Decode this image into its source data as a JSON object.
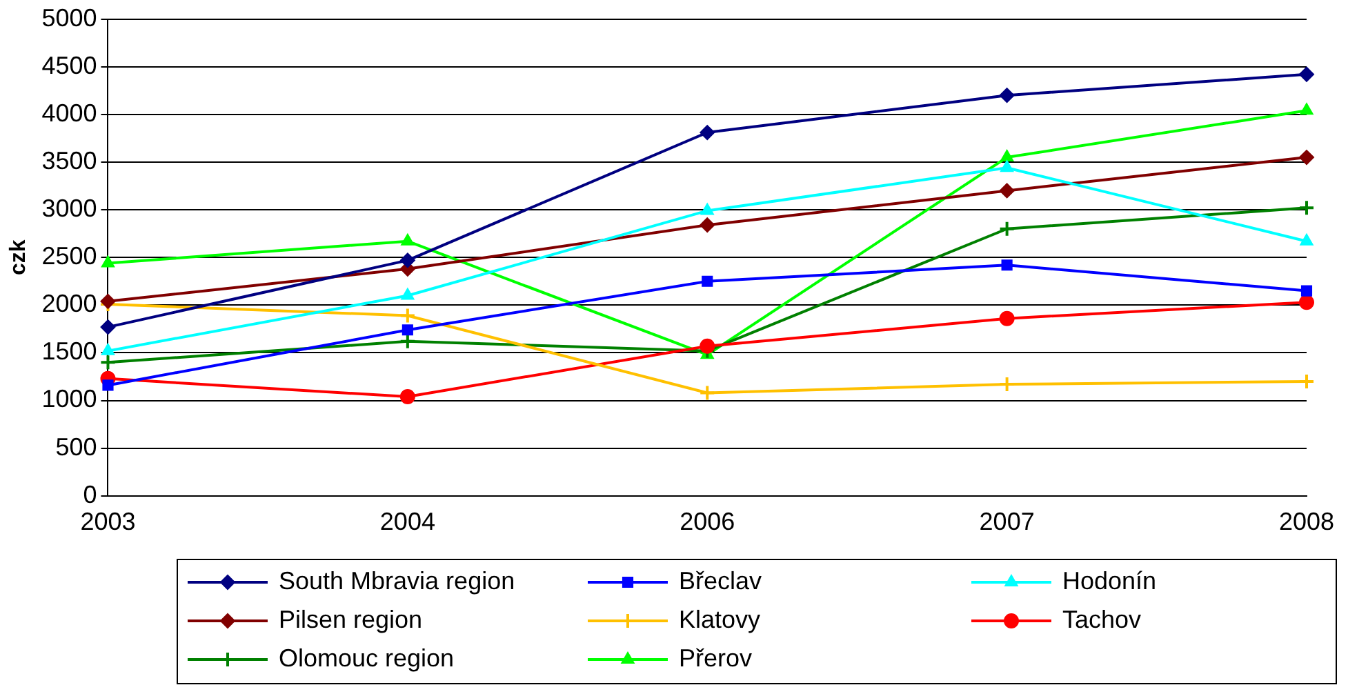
{
  "chart_data": {
    "type": "line",
    "ylabel": "czk",
    "categories": [
      "2003",
      "2004",
      "2006",
      "2007",
      "2008"
    ],
    "ylim": [
      0,
      5000
    ],
    "yticks": [
      0,
      500,
      1000,
      1500,
      2000,
      2500,
      3000,
      3500,
      4000,
      4500,
      5000
    ],
    "grid": "y",
    "legend": "bottom",
    "line_style": "solid",
    "series": [
      {
        "name": "South Mbravia region",
        "color": "#000080",
        "marker": "diamond",
        "values": [
          1770,
          2470,
          3810,
          4200,
          4420
        ]
      },
      {
        "name": "Břeclav",
        "color": "#0000ff",
        "marker": "square",
        "values": [
          1160,
          1740,
          2250,
          2420,
          2150
        ]
      },
      {
        "name": "Hodonín",
        "color": "#00ffff",
        "marker": "triangle",
        "values": [
          1520,
          2100,
          2990,
          3440,
          2670
        ]
      },
      {
        "name": "Pilsen region",
        "color": "#800000",
        "marker": "diamond",
        "values": [
          2040,
          2380,
          2840,
          3200,
          3550
        ]
      },
      {
        "name": "Klatovy",
        "color": "#ffc000",
        "marker": "cross",
        "values": [
          2010,
          1890,
          1080,
          1170,
          1200
        ]
      },
      {
        "name": "Tachov",
        "color": "#ff0000",
        "marker": "circle",
        "values": [
          1230,
          1040,
          1570,
          1860,
          2030
        ]
      },
      {
        "name": "Olomouc region",
        "color": "#008000",
        "marker": "cross",
        "values": [
          1400,
          1620,
          1520,
          2800,
          3020
        ]
      },
      {
        "name": "Přerov",
        "color": "#00ff00",
        "marker": "triangle",
        "values": [
          2440,
          2670,
          1480,
          3550,
          4040
        ]
      }
    ]
  }
}
